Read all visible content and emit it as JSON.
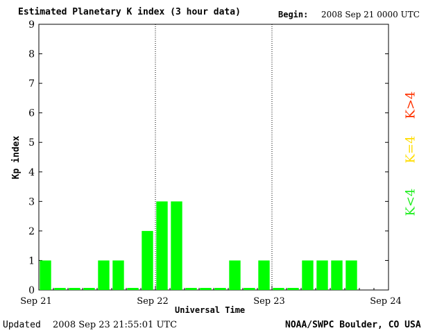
{
  "header": {
    "title": "Estimated Planetary K index (3 hour data)",
    "begin_label": "Begin:",
    "begin_value": "2008 Sep 21 0000 UTC"
  },
  "footer": {
    "updated_label": "Updated",
    "updated_value": "2008 Sep 23 21:55:01 UTC",
    "source": "NOAA/SWPC Boulder, CO USA"
  },
  "legend": {
    "high": "K>4",
    "equal": "K=4",
    "low": "K<4"
  },
  "colors": {
    "low": "#00ff00",
    "equal": "#ffdd00",
    "high": "#ff3300"
  },
  "chart_data": {
    "type": "bar",
    "title": "Estimated Planetary K index (3 hour data)",
    "xlabel": "Universal Time",
    "ylabel": "Kp index",
    "ylim": [
      0,
      9
    ],
    "yticks": [
      0,
      1,
      2,
      3,
      4,
      5,
      6,
      7,
      8,
      9
    ],
    "xticks": [
      "Sep 21",
      "Sep 22",
      "Sep 23",
      "Sep 24"
    ],
    "interval_hours": 3,
    "start": "2008 Sep 21 0000 UTC",
    "values": [
      1,
      0,
      0,
      0,
      1,
      1,
      0,
      2,
      3,
      3,
      0,
      0,
      0,
      1,
      0,
      1,
      0,
      0,
      1,
      1,
      1,
      1
    ],
    "day_dividers": [
      "Sep 22",
      "Sep 23"
    ]
  }
}
